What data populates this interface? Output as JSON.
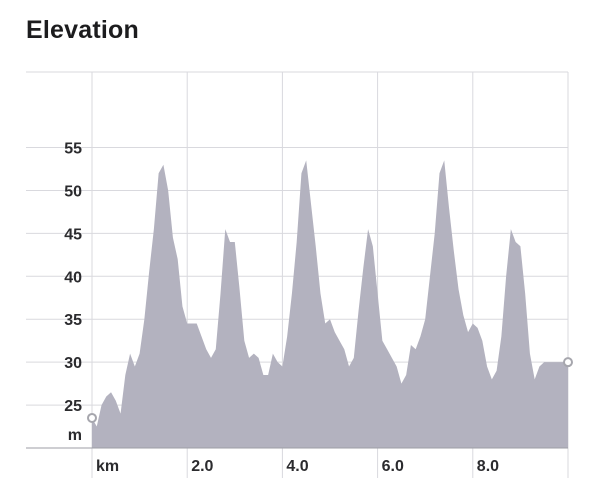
{
  "chart_data": {
    "type": "area",
    "title": "Elevation",
    "xlabel": "km",
    "ylabel": "m",
    "xlim": [
      0,
      10
    ],
    "ylim": [
      20,
      60
    ],
    "x_ticks": [
      2.0,
      4.0,
      6.0,
      8.0
    ],
    "x_tick_labels": [
      "2.0",
      "4.0",
      "6.0",
      "8.0"
    ],
    "y_ticks": [
      25,
      30,
      35,
      40,
      45,
      50,
      55
    ],
    "y_tick_labels": [
      "25",
      "30",
      "35",
      "40",
      "45",
      "50",
      "55"
    ],
    "grid": true,
    "colors": {
      "fill": "#b3b2bf",
      "grid": "#d9d9de",
      "baseline": "#9e9ea6",
      "marker_stroke": "#a6a6ad"
    },
    "x": [
      0,
      0.1,
      0.2,
      0.3,
      0.4,
      0.5,
      0.6,
      0.7,
      0.8,
      0.9,
      1.0,
      1.1,
      1.2,
      1.3,
      1.4,
      1.5,
      1.6,
      1.7,
      1.8,
      1.9,
      2.0,
      2.1,
      2.2,
      2.3,
      2.4,
      2.5,
      2.6,
      2.7,
      2.8,
      2.9,
      3.0,
      3.1,
      3.2,
      3.3,
      3.4,
      3.5,
      3.6,
      3.7,
      3.8,
      3.9,
      4.0,
      4.1,
      4.2,
      4.3,
      4.4,
      4.5,
      4.6,
      4.7,
      4.8,
      4.9,
      5.0,
      5.1,
      5.2,
      5.3,
      5.4,
      5.5,
      5.6,
      5.7,
      5.8,
      5.9,
      6.0,
      6.1,
      6.2,
      6.3,
      6.4,
      6.5,
      6.6,
      6.7,
      6.8,
      6.9,
      7.0,
      7.1,
      7.2,
      7.3,
      7.4,
      7.5,
      7.6,
      7.7,
      7.8,
      7.9,
      8.0,
      8.1,
      8.2,
      8.3,
      8.4,
      8.5,
      8.6,
      8.7,
      8.8,
      8.9,
      9.0,
      9.1,
      9.2,
      9.3,
      9.4,
      9.5,
      9.6,
      9.7,
      9.8,
      9.9,
      10.0
    ],
    "values": [
      23.5,
      22.5,
      25.0,
      26.0,
      26.5,
      25.5,
      24.0,
      28.5,
      31.0,
      29.5,
      31.0,
      35.0,
      40.5,
      45.5,
      52.0,
      53.0,
      50.0,
      44.5,
      42.0,
      36.5,
      34.5,
      34.5,
      34.5,
      33.0,
      31.5,
      30.5,
      31.5,
      38.0,
      45.5,
      44.0,
      44.0,
      38.5,
      32.5,
      30.5,
      31.0,
      30.5,
      28.5,
      28.5,
      31.0,
      30.0,
      29.5,
      33.0,
      38.0,
      44.0,
      52.0,
      53.5,
      48.5,
      43.5,
      38.0,
      34.5,
      35.0,
      33.5,
      32.5,
      31.5,
      29.5,
      30.5,
      36.0,
      41.0,
      45.5,
      43.5,
      38.0,
      32.5,
      31.5,
      30.5,
      29.5,
      27.5,
      28.5,
      32.0,
      31.5,
      33.0,
      35.0,
      40.0,
      45.0,
      52.0,
      53.5,
      48.0,
      43.0,
      38.5,
      35.5,
      33.5,
      34.5,
      34.0,
      32.5,
      29.5,
      28.0,
      29.0,
      33.0,
      40.0,
      45.5,
      44.0,
      43.5,
      38.0,
      31.0,
      28.0,
      29.5,
      30.0,
      30.0,
      30.0,
      30.0,
      30.0,
      30.0
    ],
    "start_marker": {
      "x": 0,
      "y": 23.5
    },
    "end_marker": {
      "x": 10.0,
      "y": 30.0
    }
  }
}
